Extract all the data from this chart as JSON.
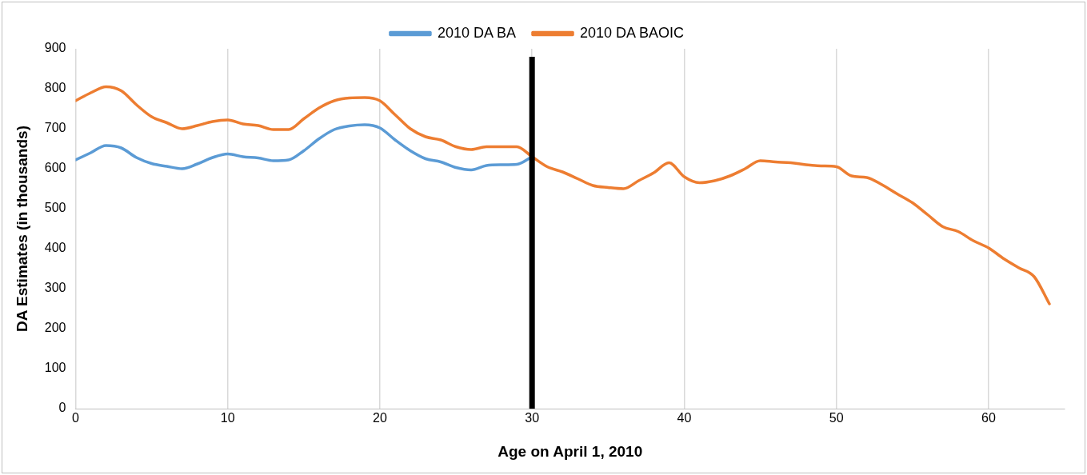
{
  "chart_data": {
    "type": "line",
    "xlabel": "Age on April 1, 2010",
    "ylabel": "DA Estimates (in thousands)",
    "x": [
      0,
      1,
      2,
      3,
      4,
      5,
      6,
      7,
      8,
      9,
      10,
      11,
      12,
      13,
      14,
      15,
      16,
      17,
      18,
      19,
      20,
      21,
      22,
      23,
      24,
      25,
      26,
      27,
      28,
      29,
      30,
      31,
      32,
      33,
      34,
      35,
      36,
      37,
      38,
      39,
      40,
      41,
      42,
      43,
      44,
      45,
      46,
      47,
      48,
      49,
      50,
      51,
      52,
      53,
      54,
      55,
      56,
      57,
      58,
      59,
      60,
      61,
      62,
      63,
      64
    ],
    "series": [
      {
        "name": "2010 DA BA",
        "color": "#5b9bd5",
        "values": [
          622,
          640,
          658,
          652,
          628,
          613,
          606,
          600,
          612,
          628,
          637,
          630,
          627,
          620,
          622,
          645,
          675,
          698,
          707,
          710,
          702,
          672,
          645,
          625,
          617,
          603,
          597,
          608,
          610,
          611,
          630,
          null,
          null,
          null,
          null,
          null,
          null,
          null,
          null,
          null,
          null,
          null,
          null,
          null,
          null,
          null,
          null,
          null,
          null,
          null,
          null,
          null,
          null,
          null,
          null,
          null,
          null,
          null,
          null,
          null,
          null,
          null,
          null,
          null,
          null
        ]
      },
      {
        "name": "2010 DA BAOIC",
        "color": "#ed7d31",
        "values": [
          770,
          790,
          805,
          795,
          760,
          730,
          715,
          700,
          708,
          718,
          722,
          712,
          708,
          698,
          698,
          725,
          752,
          770,
          777,
          778,
          770,
          735,
          700,
          680,
          672,
          655,
          648,
          655,
          655,
          655,
          630,
          605,
          592,
          575,
          558,
          553,
          550,
          570,
          590,
          615,
          580,
          565,
          570,
          582,
          600,
          620,
          617,
          615,
          610,
          607,
          605,
          582,
          578,
          560,
          537,
          515,
          485,
          455,
          443,
          420,
          402,
          375,
          352,
          330,
          262
        ]
      }
    ],
    "xlim": [
      0,
      65
    ],
    "xticks": [
      0,
      10,
      20,
      30,
      40,
      50,
      60
    ],
    "ylim": [
      0,
      900
    ],
    "yticks": [
      0,
      100,
      200,
      300,
      400,
      500,
      600,
      700,
      800,
      900
    ],
    "ref_lines": [
      {
        "axis": "x",
        "value": 30,
        "color": "#000000"
      }
    ],
    "grid": "x",
    "legend": "top",
    "marker": "none",
    "line_style": "solid"
  }
}
